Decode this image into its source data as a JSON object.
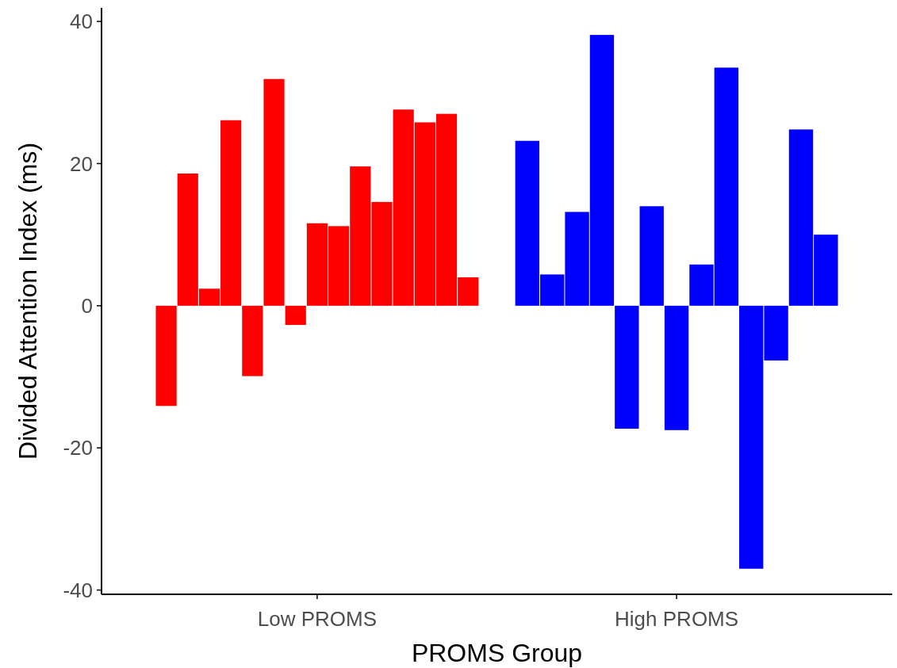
{
  "chart_data": {
    "type": "bar",
    "xlabel": "PROMS Group",
    "ylabel": "Divided Attention Index (ms)",
    "categories": [
      "Low PROMS",
      "High PROMS"
    ],
    "ylim": [
      -40.6,
      41.9
    ],
    "yticks": [
      -40,
      -20,
      0,
      20,
      40
    ],
    "grid": false,
    "series": [
      {
        "colors": [
          "#ff0000",
          "#0000ff"
        ],
        "values": [
          -14.1,
          23.2
        ]
      },
      {
        "colors": [
          "#ff0000",
          "#0000ff"
        ],
        "values": [
          18.6,
          4.4
        ]
      },
      {
        "colors": [
          "#ff0000",
          "#0000ff"
        ],
        "values": [
          2.4,
          13.2
        ]
      },
      {
        "colors": [
          "#ff0000",
          "#0000ff"
        ],
        "values": [
          26.1,
          38.1
        ]
      },
      {
        "colors": [
          "#ff0000",
          "#0000ff"
        ],
        "values": [
          -9.9,
          -17.3
        ]
      },
      {
        "colors": [
          "#ff0000",
          "#0000ff"
        ],
        "values": [
          31.9,
          14.0
        ]
      },
      {
        "colors": [
          "#ff0000",
          "#0000ff"
        ],
        "values": [
          -2.7,
          -17.5
        ]
      },
      {
        "colors": [
          "#ff0000",
          "#0000ff"
        ],
        "values": [
          11.6,
          5.8
        ]
      },
      {
        "colors": [
          "#ff0000",
          "#0000ff"
        ],
        "values": [
          11.2,
          33.5
        ]
      },
      {
        "colors": [
          "#ff0000",
          "#0000ff"
        ],
        "values": [
          19.6,
          -37.0
        ]
      },
      {
        "colors": [
          "#ff0000",
          "#0000ff"
        ],
        "values": [
          14.6,
          -7.7
        ]
      },
      {
        "colors": [
          "#ff0000",
          "#0000ff"
        ],
        "values": [
          27.6,
          24.8
        ]
      },
      {
        "colors": [
          "#ff0000",
          "#0000ff"
        ],
        "values": [
          25.8,
          10.0
        ]
      },
      {
        "colors": [
          "#ff0000",
          null
        ],
        "values": [
          27.0,
          null
        ]
      },
      {
        "colors": [
          "#ff0000",
          null
        ],
        "values": [
          4.0,
          null
        ]
      }
    ]
  }
}
